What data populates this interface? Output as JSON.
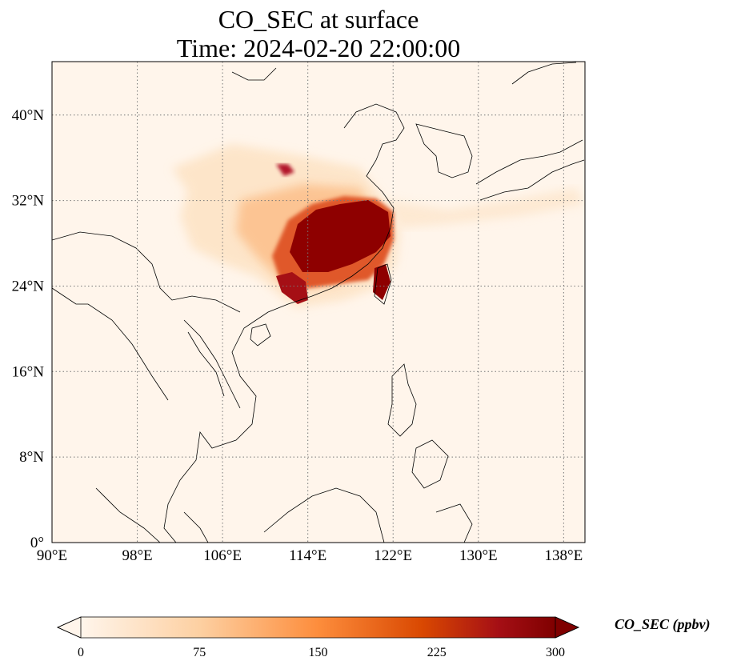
{
  "title": {
    "line1": "CO_SEC at surface",
    "line2": "Time: 2024-02-20 22:00:00"
  },
  "map": {
    "lon_range": [
      90,
      140
    ],
    "lat_range": [
      0,
      45
    ],
    "lon_ticks": [
      {
        "value": 90,
        "label": "90°E"
      },
      {
        "value": 98,
        "label": "98°E"
      },
      {
        "value": 106,
        "label": "106°E"
      },
      {
        "value": 114,
        "label": "114°E"
      },
      {
        "value": 122,
        "label": "122°E"
      },
      {
        "value": 130,
        "label": "130°E"
      },
      {
        "value": 138,
        "label": "138°E"
      }
    ],
    "lat_ticks": [
      {
        "value": 0,
        "label": "0°"
      },
      {
        "value": 8,
        "label": "8°N"
      },
      {
        "value": 16,
        "label": "16°N"
      },
      {
        "value": 24,
        "label": "24°N"
      },
      {
        "value": 32,
        "label": "32°N"
      },
      {
        "value": 40,
        "label": "40°N"
      }
    ],
    "gridlines": true
  },
  "colorbar": {
    "label": "CO_SEC (ppbv)",
    "range": [
      0,
      300
    ],
    "ticks": [
      {
        "value": 0,
        "label": "0"
      },
      {
        "value": 75,
        "label": "75"
      },
      {
        "value": 150,
        "label": "150"
      },
      {
        "value": 225,
        "label": "225"
      },
      {
        "value": 300,
        "label": "300"
      }
    ],
    "extend": "both",
    "colormap": [
      "#fff5eb",
      "#fdd0a2",
      "#fd8d3c",
      "#d94801",
      "#a50f15",
      "#7f0000"
    ]
  }
}
